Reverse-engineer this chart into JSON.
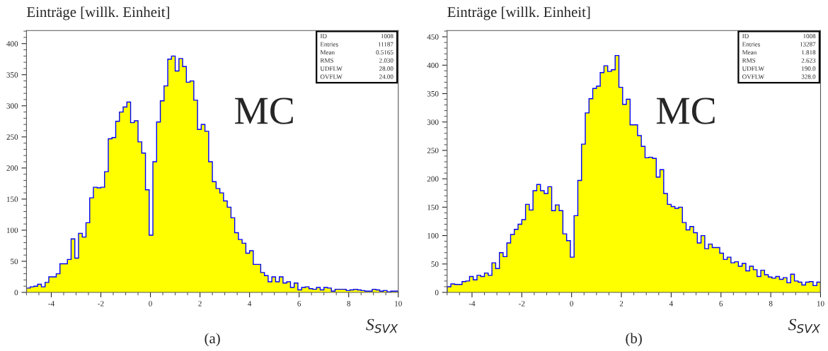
{
  "chart_data": [
    {
      "type": "histogram",
      "ylabel": "Einträge [willk. Einheit]",
      "xlabel": "S$_{SVX}$",
      "annotations": [
        "MC",
        "(a)",
        "ID",
        "1008",
        "Entries",
        "11187",
        "Mean",
        "0.5165",
        "RMS",
        "2.030",
        "UDFLW",
        "28.00",
        "OVFLW",
        "24.00"
      ],
      "bins": [
        -5,
        -4.85,
        -4.7,
        -4.55,
        -4.4,
        -4.25,
        -4.1,
        -3.95,
        -3.8,
        -3.65,
        -3.5,
        -3.35,
        -3.2,
        -3.05,
        -2.9,
        -2.75,
        -2.6,
        -2.45,
        -2.3,
        -2.15,
        -2,
        -1.85,
        -1.7,
        -1.55,
        -1.4,
        -1.25,
        -1.1,
        -0.95,
        -0.8,
        -0.65,
        -0.5,
        -0.35,
        -0.2,
        -0.05,
        0.1,
        0.25,
        0.4,
        0.55,
        0.7,
        0.85,
        1,
        1.15,
        1.3,
        1.45,
        1.6,
        1.75,
        1.9,
        2.05,
        2.2,
        2.35,
        2.5,
        2.65,
        2.8,
        2.95,
        3.1,
        3.25,
        3.4,
        3.55,
        3.7,
        3.85,
        4,
        4.15,
        4.3,
        4.45,
        4.6,
        4.75,
        4.9,
        5.05,
        5.2,
        5.35,
        5.5,
        5.65,
        5.8,
        5.95,
        6.1,
        6.25,
        6.4,
        6.55,
        6.7,
        6.85,
        7,
        7.15,
        7.3,
        7.45,
        7.6,
        7.75,
        7.9,
        8.05,
        8.2,
        8.35,
        8.5,
        8.65,
        8.8,
        8.95,
        9.1,
        9.25,
        9.4,
        9.55,
        9.7,
        9.85,
        10
      ],
      "series": [
        {
          "color": "#ffff00",
          "values": [
            7,
            9,
            10,
            13,
            9,
            16,
            25,
            25,
            30,
            46,
            46,
            53,
            86,
            55,
            95,
            89,
            112,
            152,
            169,
            168,
            169,
            194,
            247,
            249,
            275,
            290,
            298,
            306,
            273,
            276,
            242,
            224,
            165,
            92,
            210,
            274,
            308,
            332,
            375,
            380,
            356,
            376,
            363,
            338,
            340,
            309,
            262,
            270,
            259,
            210,
            178,
            167,
            160,
            147,
            137,
            120,
            96,
            85,
            79,
            63,
            67,
            45,
            45,
            32,
            27,
            17,
            25,
            17,
            25,
            15,
            17,
            8,
            15,
            4,
            8,
            9,
            6,
            5,
            8,
            4,
            8,
            7,
            2,
            5,
            5,
            5,
            3,
            4,
            5,
            4,
            3,
            2,
            2,
            5,
            4,
            2,
            3,
            1,
            2,
            2
          ]
        }
      ],
      "xlim": [
        -5,
        10
      ],
      "xticks": [
        -4,
        -2,
        0,
        2,
        4,
        6,
        8,
        10
      ],
      "ylim": [
        0,
        421
      ],
      "yticks": [
        0,
        50,
        100,
        150,
        200,
        250,
        300,
        350,
        400
      ],
      "grid": false
    },
    {
      "type": "histogram",
      "ylabel": "Einträge [willk. Einheit]",
      "xlabel": "S$_{SVX}$",
      "annotations": [
        "MC",
        "(b)",
        "ID",
        "1008",
        "Entries",
        "13287",
        "Mean",
        "1.818",
        "RMS",
        "2.623",
        "UDFLW",
        "190.0",
        "OVFLW",
        "328.0"
      ],
      "bins": [
        -5,
        -4.85,
        -4.7,
        -4.55,
        -4.4,
        -4.25,
        -4.1,
        -3.95,
        -3.8,
        -3.65,
        -3.5,
        -3.35,
        -3.2,
        -3.05,
        -2.9,
        -2.75,
        -2.6,
        -2.45,
        -2.3,
        -2.15,
        -2,
        -1.85,
        -1.7,
        -1.55,
        -1.4,
        -1.25,
        -1.1,
        -0.95,
        -0.8,
        -0.65,
        -0.5,
        -0.35,
        -0.2,
        -0.05,
        0.1,
        0.25,
        0.4,
        0.55,
        0.7,
        0.85,
        1,
        1.15,
        1.3,
        1.45,
        1.6,
        1.75,
        1.9,
        2.05,
        2.2,
        2.35,
        2.5,
        2.65,
        2.8,
        2.95,
        3.1,
        3.25,
        3.4,
        3.55,
        3.7,
        3.85,
        4,
        4.15,
        4.3,
        4.45,
        4.6,
        4.75,
        4.9,
        5.05,
        5.2,
        5.35,
        5.5,
        5.65,
        5.8,
        5.95,
        6.1,
        6.25,
        6.4,
        6.55,
        6.7,
        6.85,
        7,
        7.15,
        7.3,
        7.45,
        7.6,
        7.75,
        7.9,
        8.05,
        8.2,
        8.35,
        8.5,
        8.65,
        8.8,
        8.95,
        9.1,
        9.25,
        9.4,
        9.55,
        9.7,
        9.85,
        10
      ],
      "series": [
        {
          "color": "#ffff00",
          "values": [
            10,
            15,
            14,
            14,
            19,
            20,
            28,
            22,
            30,
            28,
            34,
            30,
            52,
            42,
            70,
            63,
            87,
            102,
            111,
            120,
            128,
            155,
            145,
            179,
            190,
            179,
            174,
            186,
            144,
            154,
            144,
            103,
            91,
            62,
            135,
            197,
            261,
            316,
            341,
            359,
            363,
            387,
            399,
            389,
            392,
            417,
            361,
            331,
            340,
            295,
            295,
            276,
            257,
            237,
            238,
            236,
            203,
            216,
            174,
            155,
            151,
            148,
            150,
            123,
            110,
            116,
            105,
            87,
            100,
            77,
            85,
            79,
            79,
            69,
            58,
            62,
            52,
            54,
            46,
            51,
            38,
            46,
            40,
            28,
            39,
            31,
            27,
            25,
            28,
            23,
            26,
            17,
            32,
            20,
            18,
            13,
            18,
            19,
            12,
            18
          ]
        }
      ],
      "xlim": [
        -5,
        10
      ],
      "xticks": [
        -4,
        -2,
        0,
        2,
        4,
        6,
        8,
        10
      ],
      "ylim": [
        0,
        461
      ],
      "yticks": [
        0,
        50,
        100,
        150,
        200,
        250,
        300,
        350,
        400,
        450
      ],
      "grid": false
    }
  ]
}
